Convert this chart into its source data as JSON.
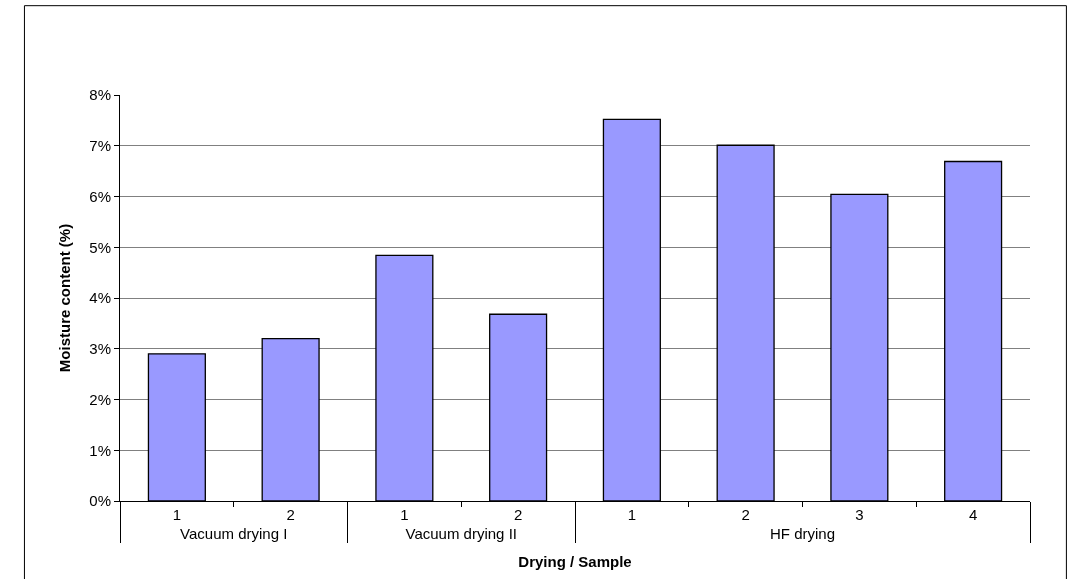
{
  "chart_data": {
    "type": "bar",
    "xlabel": "Drying / Sample",
    "ylabel": "Moisture content (%)",
    "categories": [
      "1",
      "2",
      "1",
      "2",
      "1",
      "2",
      "3",
      "4"
    ],
    "annotations": [
      "Vacuum drying I",
      "Vacuum drying II",
      "HF drying"
    ],
    "values": [
      2.9,
      3.2,
      4.84,
      3.68,
      7.52,
      7.01,
      6.04,
      6.69
    ],
    "color": "#9999ff",
    "ylim": [
      0,
      8
    ],
    "yticks": [
      {
        "value": 0,
        "label": "0%"
      },
      {
        "value": 1,
        "label": "1%"
      },
      {
        "value": 2,
        "label": "2%"
      },
      {
        "value": 3,
        "label": "3%"
      },
      {
        "value": 4,
        "label": "4%"
      },
      {
        "value": 5,
        "label": "5%"
      },
      {
        "value": 6,
        "label": "6%"
      },
      {
        "value": 7,
        "label": "7%"
      },
      {
        "value": 8,
        "label": "8%"
      }
    ],
    "grid": "y",
    "legend": false
  }
}
